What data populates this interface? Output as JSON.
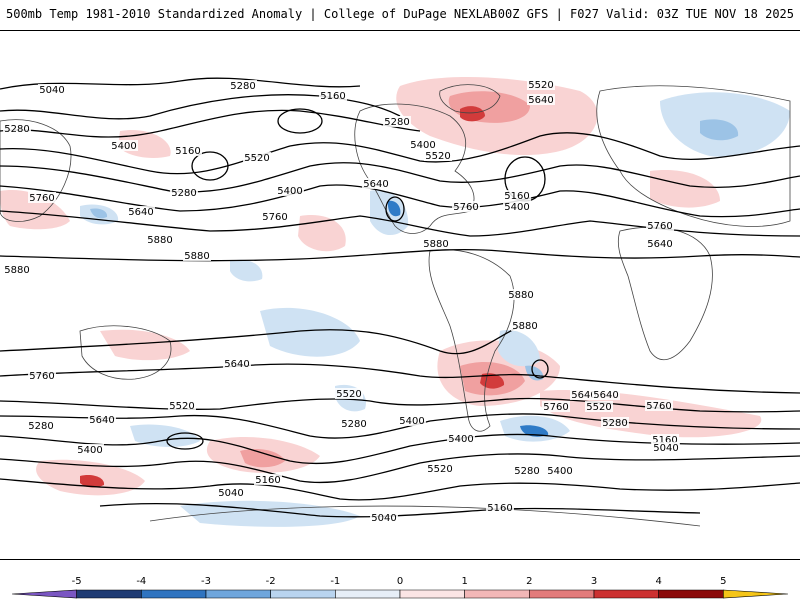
{
  "header": {
    "title": "500mb Temp 1981-2010 Standardized Anomaly | College of DuPage NEXLAB",
    "run_info": "00Z GFS | F027 Valid: 03Z TUE NOV 18 2025"
  },
  "map": {
    "contour_labels": [
      "5040",
      "5280",
      "5160",
      "5400",
      "5520",
      "5280",
      "5280",
      "5520",
      "5400",
      "5160",
      "5280",
      "5520",
      "5640",
      "5760",
      "5640",
      "5400",
      "5160",
      "5400",
      "5640",
      "5880",
      "5880",
      "5880",
      "5880",
      "5760",
      "5640",
      "5760",
      "5760",
      "5880",
      "5880",
      "5760",
      "5640",
      "5520",
      "5400",
      "5280",
      "5400",
      "5520",
      "5640",
      "5760",
      "5280",
      "5640",
      "5520",
      "5280",
      "5160",
      "5040",
      "5400",
      "5160",
      "5040",
      "5040",
      "5160",
      "5280",
      "5400",
      "5520",
      "5640",
      "5760"
    ],
    "colors": {
      "land_line": "#444444",
      "contour": "#000000",
      "warm_light": "#f9d3d3",
      "warm_mid": "#f0a0a0",
      "warm_strong": "#d23b3b",
      "cold_light": "#cfe2f3",
      "cold_mid": "#9cc3e6",
      "cold_strong": "#2f7bc7"
    }
  },
  "colorbar": {
    "ticks": [
      "-5",
      "-4",
      "-3",
      "-2",
      "-1",
      "0",
      "1",
      "2",
      "3",
      "4",
      "5"
    ],
    "colors": [
      "#7a56c2",
      "#1f3b73",
      "#2f74c0",
      "#6fa6dc",
      "#b9d4ef",
      "#e6eef7",
      "#fbe5e5",
      "#f2b7b7",
      "#e27b7b",
      "#cc3131",
      "#8b0a0a",
      "#f5c518"
    ]
  }
}
